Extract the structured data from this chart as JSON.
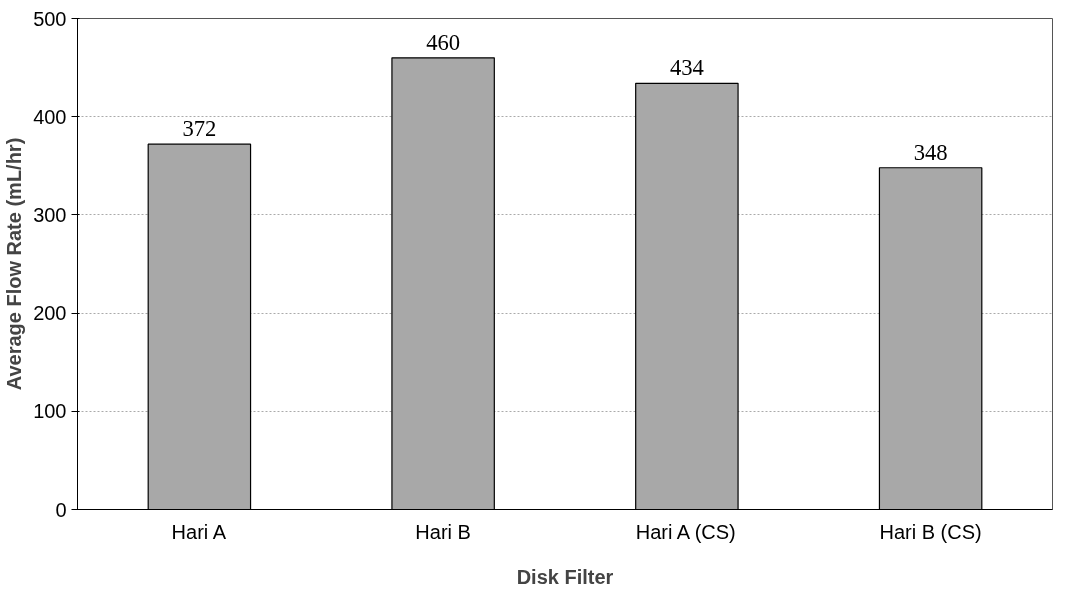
{
  "chart_data": {
    "type": "bar",
    "xlabel": "Disk Filter",
    "ylabel": "Average Flow Rate (mL/hr)",
    "categories": [
      "Hari A",
      "Hari B",
      "Hari A (CS)",
      "Hari B (CS)"
    ],
    "values": [
      372,
      460,
      434,
      348
    ],
    "color": "#a8a8a8",
    "ylim": [
      0,
      500
    ],
    "yticks": [
      0,
      100,
      200,
      300,
      400,
      500
    ],
    "grid": "y",
    "data_labels": true
  }
}
